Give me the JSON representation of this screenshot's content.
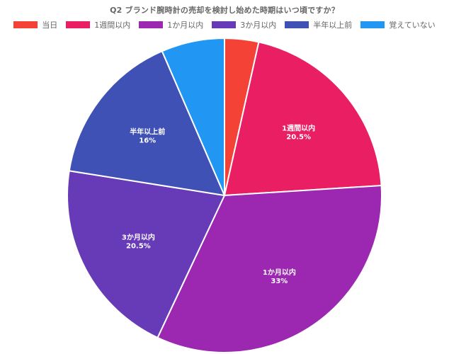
{
  "chart_data": {
    "type": "pie",
    "title": "Q2 ブランド腕時計の売却を検討し始めた時期はいつ頃ですか？",
    "legend_position": "top",
    "slices": [
      {
        "label": "当日",
        "value": 3.5,
        "value_label": "",
        "color": "#f44336"
      },
      {
        "label": "1週間以内",
        "value": 20.5,
        "value_label": "20.5%",
        "color": "#e91e63"
      },
      {
        "label": "1か月以内",
        "value": 33,
        "value_label": "33%",
        "color": "#9c27b0"
      },
      {
        "label": "3か月以内",
        "value": 20.5,
        "value_label": "20.5%",
        "color": "#673ab7"
      },
      {
        "label": "半年以上前",
        "value": 16,
        "value_label": "16%",
        "color": "#3f51b5"
      },
      {
        "label": "覚えていない",
        "value": 6.5,
        "value_label": "",
        "color": "#2196f3"
      }
    ]
  }
}
